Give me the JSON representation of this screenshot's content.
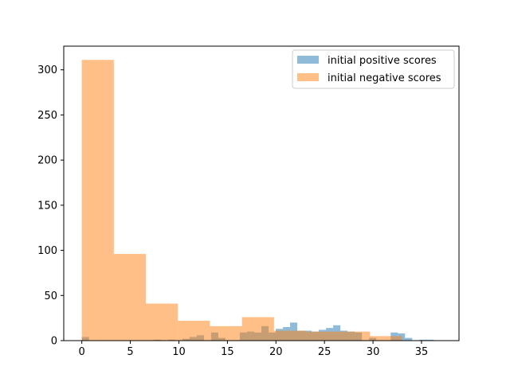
{
  "chart_data": {
    "type": "bar",
    "title": "",
    "xlabel": "",
    "ylabel": "",
    "xlim": [
      -1.86,
      38.86
    ],
    "ylim": [
      0,
      326.2
    ],
    "grid": false,
    "legend_placement": "upper-right",
    "xticks": [
      0,
      5,
      10,
      15,
      20,
      25,
      30,
      35
    ],
    "yticks": [
      0,
      50,
      100,
      150,
      200,
      250,
      300
    ],
    "series": [
      {
        "name": "initial positive scores",
        "color": "#1f77b4",
        "alpha": 0.5,
        "bin_start": 0,
        "bin_width": 0.74,
        "values": [
          4,
          0,
          0,
          0,
          0,
          0,
          0,
          0,
          0,
          0,
          1,
          0,
          1,
          0,
          2,
          4,
          6,
          0,
          9,
          3,
          0,
          0,
          9,
          10,
          9,
          16,
          9,
          13,
          15,
          20,
          11,
          11,
          10,
          12,
          14,
          17,
          11,
          10,
          9,
          0,
          3,
          0,
          0,
          9,
          8,
          3,
          0,
          1,
          1,
          0
        ]
      },
      {
        "name": "initial negative scores",
        "color": "#ff7f0e",
        "alpha": 0.5,
        "bin_start": 0,
        "bin_width": 3.3,
        "values": [
          311,
          96,
          41,
          22,
          16,
          26,
          11,
          10,
          10,
          5
        ]
      }
    ]
  }
}
